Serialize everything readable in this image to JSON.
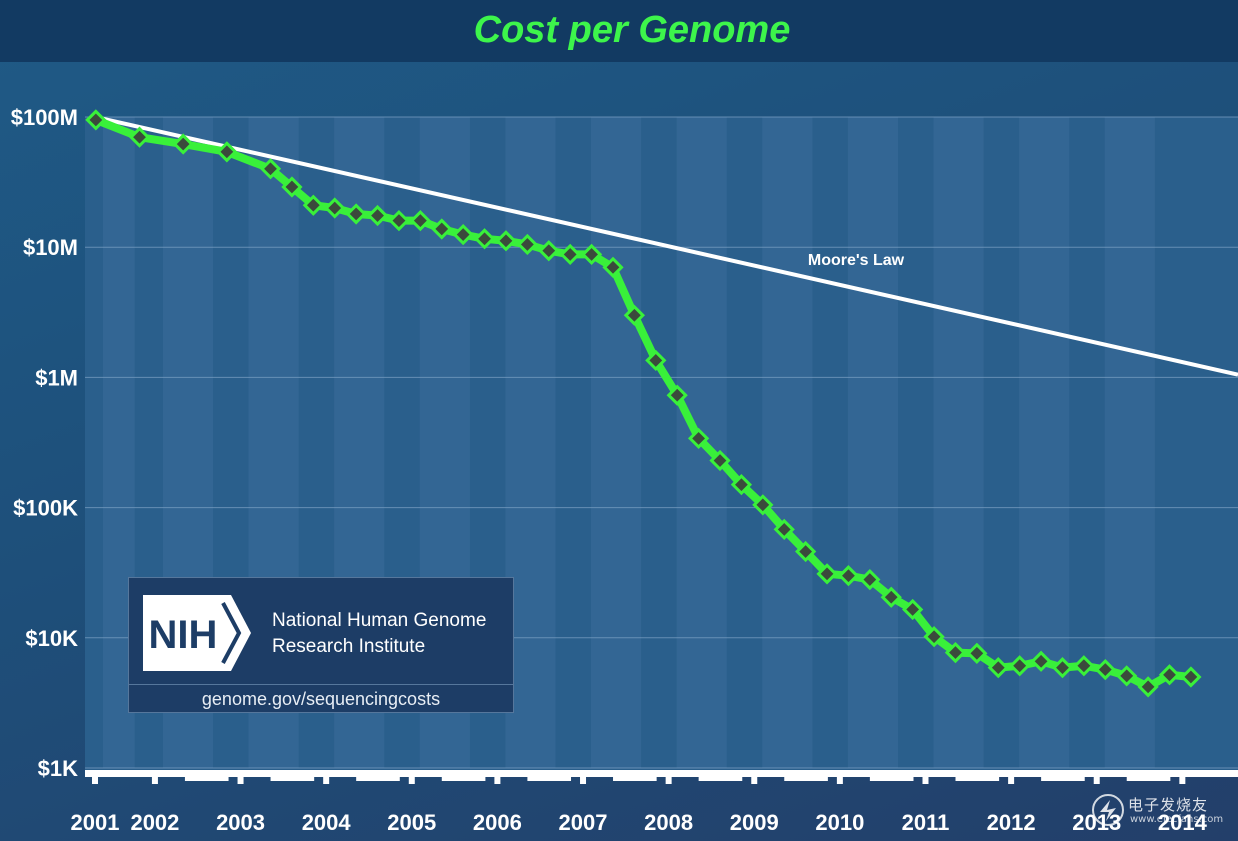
{
  "chart_data": {
    "type": "line",
    "title": "Cost per Genome",
    "yscale": "log",
    "ylim": [
      1000,
      100000000
    ],
    "xlim": [
      2001,
      2014.35
    ],
    "grid": true,
    "y_ticks": [
      {
        "value": 100000000,
        "label": "$100M"
      },
      {
        "value": 10000000,
        "label": "$10M"
      },
      {
        "value": 1000000,
        "label": "$1M"
      },
      {
        "value": 100000,
        "label": "$100K"
      },
      {
        "value": 10000,
        "label": "$10K"
      },
      {
        "value": 1000,
        "label": "$1K"
      }
    ],
    "x_ticks": [
      {
        "value": 2001,
        "label": "2001"
      },
      {
        "value": 2001.7,
        "label": "2002"
      },
      {
        "value": 2002.7,
        "label": "2003"
      },
      {
        "value": 2003.7,
        "label": "2004"
      },
      {
        "value": 2004.7,
        "label": "2005"
      },
      {
        "value": 2005.7,
        "label": "2006"
      },
      {
        "value": 2006.7,
        "label": "2007"
      },
      {
        "value": 2007.7,
        "label": "2008"
      },
      {
        "value": 2008.7,
        "label": "2009"
      },
      {
        "value": 2009.7,
        "label": "2010"
      },
      {
        "value": 2010.7,
        "label": "2011"
      },
      {
        "value": 2011.7,
        "label": "2012"
      },
      {
        "value": 2012.7,
        "label": "2013"
      },
      {
        "value": 2013.7,
        "label": "2014"
      }
    ],
    "series": [
      {
        "name": "Cost per Genome",
        "color": "#39f03a",
        "marker_color": "#3b4a3c",
        "x": [
          2001.01,
          2001.52,
          2002.03,
          2002.54,
          2003.05,
          2003.3,
          2003.55,
          2003.8,
          2004.05,
          2004.3,
          2004.55,
          2004.8,
          2005.05,
          2005.3,
          2005.55,
          2005.8,
          2006.05,
          2006.3,
          2006.55,
          2006.8,
          2007.05,
          2007.3,
          2007.55,
          2007.8,
          2008.05,
          2008.3,
          2008.55,
          2008.8,
          2009.05,
          2009.3,
          2009.55,
          2009.8,
          2010.05,
          2010.3,
          2010.55,
          2010.8,
          2011.05,
          2011.3,
          2011.55,
          2011.8,
          2012.05,
          2012.3,
          2012.55,
          2012.8,
          2013.05,
          2013.3,
          2013.55,
          2013.8
        ],
        "y": [
          95000000,
          70000000,
          62000000,
          54000000,
          40000000,
          29000000,
          21000000,
          20000000,
          18000000,
          17500000,
          16000000,
          16000000,
          13800000,
          12500000,
          11600000,
          11200000,
          10500000,
          9400000,
          8800000,
          8800000,
          7000000,
          3000000,
          1350000,
          730000,
          340000,
          230000,
          150000,
          105000,
          68000,
          46000,
          31000,
          30000,
          28000,
          20500,
          16500,
          10200,
          7700,
          7600,
          5900,
          6100,
          6600,
          5900,
          6100,
          5700,
          5100,
          4200,
          5200,
          5000
        ]
      },
      {
        "name": "Moore's Law",
        "color": "#ffffff",
        "x": [
          2001,
          2014.35
        ],
        "y": [
          100000000,
          1050000
        ],
        "label": "Moore's Law"
      }
    ]
  },
  "branding": {
    "nih_logo_text": "NIH",
    "org_line1": "National Human Genome",
    "org_line2": "Research Institute",
    "url": "genome.gov/sequencingcosts"
  },
  "watermark": {
    "text": "电子发烧友",
    "sub": "www.elecfans.com"
  },
  "colors": {
    "title": "#3df54b",
    "plot_bg": "#2a5f8c",
    "band": "#4a7aa8",
    "grid": "#7ea3c6"
  }
}
